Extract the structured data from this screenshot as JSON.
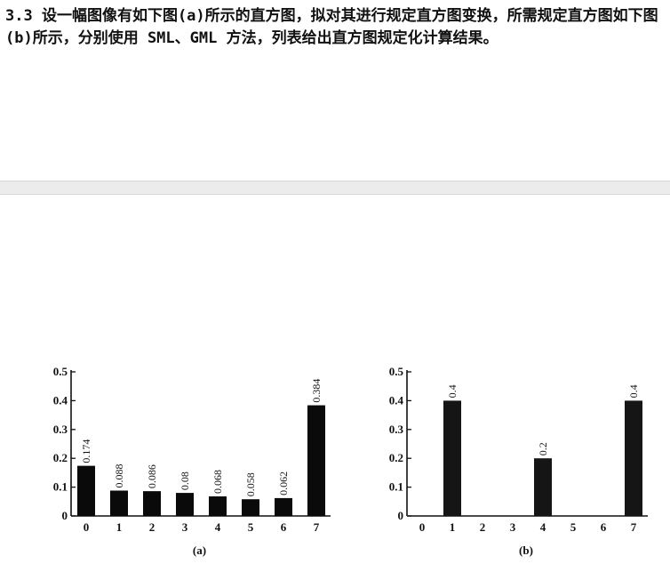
{
  "question": {
    "text": "3.3 设一幅图像有如下图(a)所示的直方图，拟对其进行规定直方图变换，所需规定直方图如下图(b)所示，分别使用 SML、GML 方法，列表给出直方图规定化计算结果。"
  },
  "chart_data": [
    {
      "type": "bar",
      "title": "",
      "caption": "(a)",
      "categories": [
        "0",
        "1",
        "2",
        "3",
        "4",
        "5",
        "6",
        "7"
      ],
      "values": [
        0.174,
        0.088,
        0.086,
        0.08,
        0.068,
        0.058,
        0.062,
        0.384
      ],
      "value_labels": [
        "0.174",
        "0.088",
        "0.086",
        "0.08",
        "0.068",
        "0.058",
        "0.062",
        "0.384"
      ],
      "yticks": [
        "0",
        "0.1",
        "0.2",
        "0.3",
        "0.4",
        "0.5"
      ],
      "ylim": [
        0,
        0.5
      ],
      "xlabel": "",
      "ylabel": ""
    },
    {
      "type": "bar",
      "title": "",
      "caption": "(b)",
      "categories": [
        "0",
        "1",
        "2",
        "3",
        "4",
        "5",
        "6",
        "7"
      ],
      "values": [
        0,
        0.4,
        0,
        0,
        0.2,
        0,
        0,
        0.4
      ],
      "value_labels": [
        "",
        "0.4",
        "",
        "",
        "0.2",
        "",
        "",
        "0.4"
      ],
      "yticks": [
        "0",
        "0.1",
        "0.2",
        "0.3",
        "0.4",
        "0.5"
      ],
      "ylim": [
        0,
        0.5
      ],
      "xlabel": "",
      "ylabel": ""
    }
  ]
}
